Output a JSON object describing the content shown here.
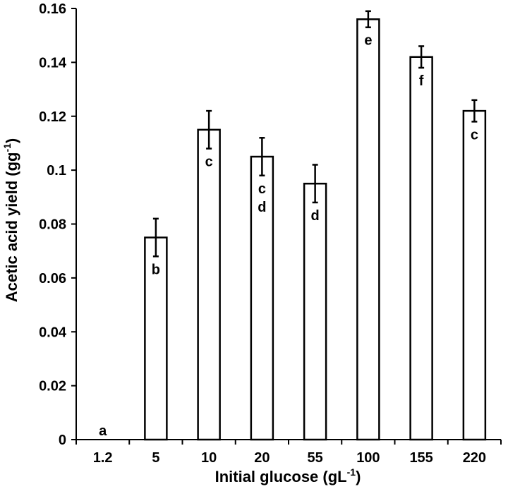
{
  "chart_data": {
    "type": "bar",
    "categories": [
      "1.2",
      "5",
      "10",
      "20",
      "55",
      "100",
      "155",
      "220"
    ],
    "values": [
      0.0,
      0.075,
      0.115,
      0.105,
      0.095,
      0.156,
      0.142,
      0.122
    ],
    "errors": [
      0.0,
      0.007,
      0.007,
      0.007,
      0.007,
      0.003,
      0.004,
      0.004
    ],
    "significance": [
      [
        "a"
      ],
      [
        "b"
      ],
      [
        "c"
      ],
      [
        "c",
        "d"
      ],
      [
        "d"
      ],
      [
        "e"
      ],
      [
        "f"
      ],
      [
        "c"
      ]
    ],
    "xlabel_main": "Initial glucose (gL",
    "xlabel_sup": "-1",
    "xlabel_end": ")",
    "ylabel_main": "Acetic acid yield (gg",
    "ylabel_sup": "-1",
    "ylabel_end": ")",
    "ylim": [
      0,
      0.16
    ],
    "yticks": [
      0,
      0.02,
      0.04,
      0.06,
      0.08,
      0.1,
      0.12,
      0.14,
      0.16
    ],
    "ytick_labels": [
      "0",
      "0.02",
      "0.04",
      "0.06",
      "0.08",
      "0.1",
      "0.12",
      "0.14",
      "0.16"
    ],
    "bar_fill": "#ffffff",
    "bar_stroke": "#000000",
    "grid": false
  }
}
